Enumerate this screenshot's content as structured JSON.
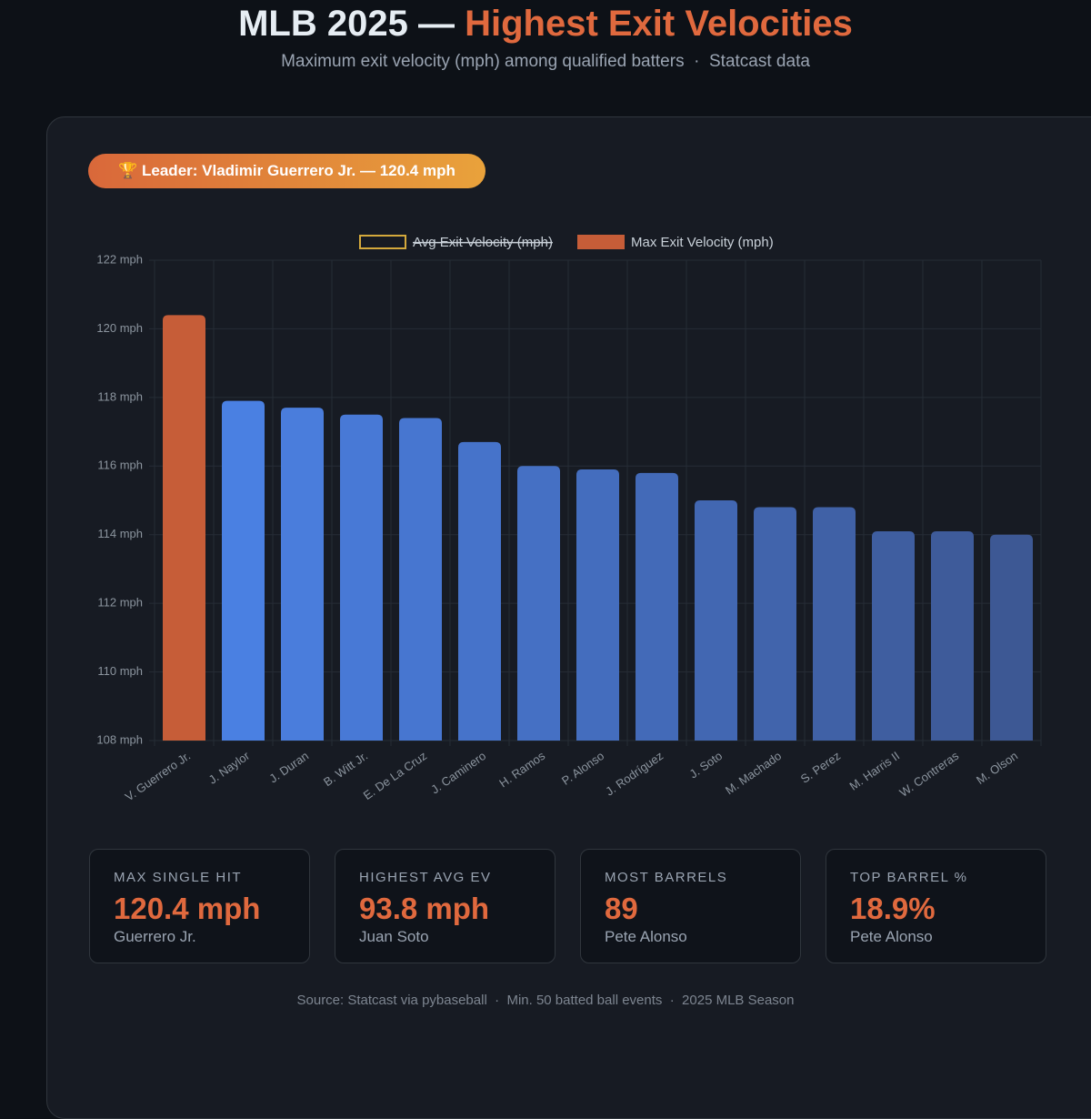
{
  "header": {
    "title": "MLB 2025 —",
    "title_highlight": "Highest Exit Velocities",
    "subtitle": "Maximum exit velocity (mph) among qualified batters  ·  Statcast data"
  },
  "badge": "🏆 Leader: Vladimir Guerrero Jr. — 120.4 mph",
  "chart_data": {
    "type": "bar",
    "categories": [
      "V. Guerrero Jr.",
      "J. Naylor",
      "J. Duran",
      "B. Witt Jr.",
      "E. De La Cruz",
      "J. Caminero",
      "H. Ramos",
      "P. Alonso",
      "J. Rodríguez",
      "J. Soto",
      "M. Machado",
      "S. Perez",
      "M. Harris II",
      "W. Contreras",
      "M. Olson"
    ],
    "series": [
      {
        "name": "Avg Exit Velocity (mph)",
        "color": "#d4a93c",
        "hidden": true
      },
      {
        "name": "Max Exit Velocity (mph)",
        "color": "#c65d38",
        "values": [
          120.4,
          117.9,
          117.7,
          117.5,
          117.4,
          116.7,
          116.0,
          115.9,
          115.8,
          115.0,
          114.8,
          114.8,
          114.1,
          114.1,
          114.0
        ],
        "colors": [
          "#c65d38",
          "#4a80e2",
          "#4a7ddc",
          "#4879d6",
          "#4776d0",
          "#4673ca",
          "#4570c4",
          "#446dbe",
          "#436ab8",
          "#4267b2",
          "#4164ac",
          "#4061a6",
          "#3f5ea0",
          "#3e5b9a",
          "#3d5894"
        ]
      }
    ],
    "ylim": [
      108,
      122
    ],
    "yticks": [
      {
        "value": 108,
        "label": "108 mph"
      },
      {
        "value": 110,
        "label": "110 mph"
      },
      {
        "value": 112,
        "label": "112 mph"
      },
      {
        "value": 114,
        "label": "114 mph"
      },
      {
        "value": 116,
        "label": "116 mph"
      },
      {
        "value": 118,
        "label": "118 mph"
      },
      {
        "value": 120,
        "label": "120 mph"
      },
      {
        "value": 122,
        "label": "122 mph"
      }
    ],
    "grid": true,
    "legend": "top"
  },
  "stats": [
    {
      "label": "MAX SINGLE HIT",
      "value": "120.4 mph",
      "sub": "Guerrero Jr."
    },
    {
      "label": "HIGHEST AVG EV",
      "value": "93.8 mph",
      "sub": "Juan Soto"
    },
    {
      "label": "MOST BARRELS",
      "value": "89",
      "sub": "Pete Alonso"
    },
    {
      "label": "TOP BARREL %",
      "value": "18.9%",
      "sub": "Pete Alonso"
    }
  ],
  "footer": "Source: Statcast via pybaseball  ·  Min. 50 batted ball events  ·  2025 MLB Season"
}
